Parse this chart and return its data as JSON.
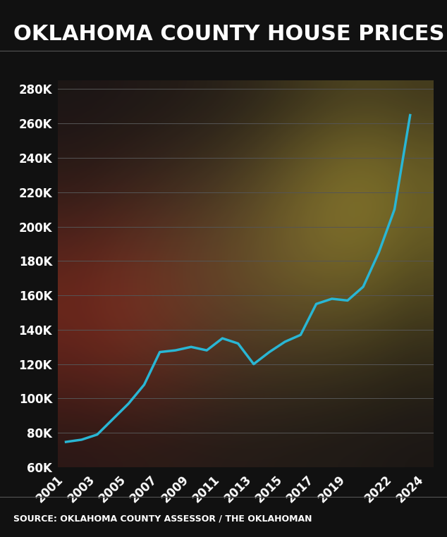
{
  "title": "OKLAHOMA COUNTY HOUSE PRICES",
  "source": "SOURCE: OKLAHOMA COUNTY ASSESSOR / THE OKLAHOMAN",
  "line_color": "#29b6d4",
  "background_color": "#111111",
  "grid_color": "#555555",
  "text_color": "#ffffff",
  "years": [
    2001,
    2002,
    2003,
    2004,
    2005,
    2006,
    2007,
    2008,
    2009,
    2010,
    2011,
    2012,
    2013,
    2014,
    2015,
    2016,
    2017,
    2018,
    2019,
    2020,
    2021,
    2022,
    2023
  ],
  "prices": [
    74715,
    76000,
    79000,
    88000,
    97000,
    108000,
    127000,
    128000,
    130000,
    128000,
    135000,
    132000,
    120000,
    127000,
    133000,
    137000,
    155000,
    158000,
    157000,
    165000,
    185000,
    210000,
    264844
  ],
  "yticks": [
    60000,
    80000,
    100000,
    120000,
    140000,
    160000,
    180000,
    200000,
    220000,
    240000,
    260000,
    280000
  ],
  "xtick_labels": [
    "2001",
    "2003",
    "2005",
    "2007",
    "2009",
    "2011",
    "2013",
    "2015",
    "2017",
    "2019",
    "2022",
    "2024"
  ],
  "xtick_positions": [
    2001,
    2003,
    2005,
    2007,
    2009,
    2011,
    2013,
    2015,
    2017,
    2019,
    2022,
    2024
  ],
  "ylim": [
    60000,
    285000
  ],
  "xlim": [
    2000.5,
    2024.5
  ],
  "line_width": 2.5,
  "title_fontsize": 22,
  "tick_fontsize": 12,
  "source_fontsize": 9
}
